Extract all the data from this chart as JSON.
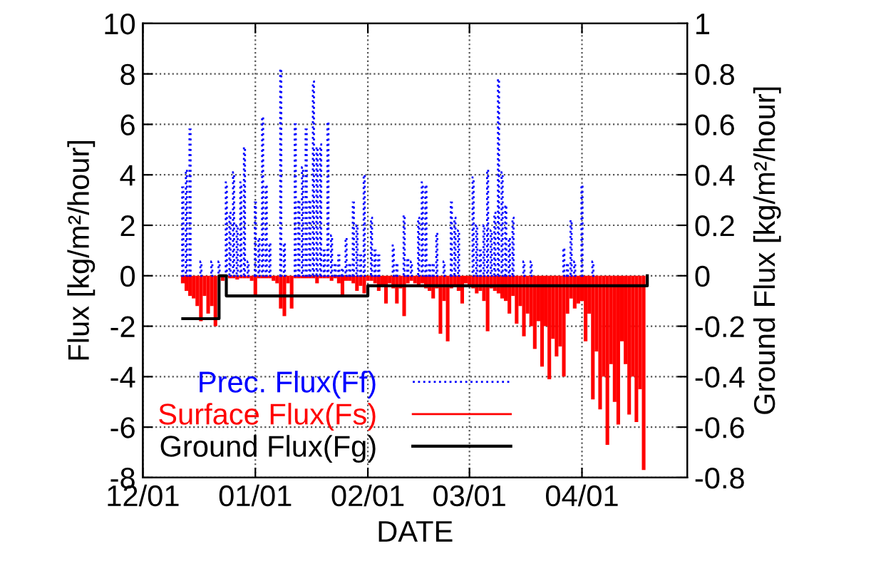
{
  "chart_data": {
    "type": "bar",
    "xlabel": "DATE",
    "ylabel": "Flux [kg/m²/hour]",
    "y2label": "Ground Flux [kg/m²/hour]",
    "categories": [
      "12/01",
      null,
      null,
      null,
      null,
      null,
      null,
      null,
      null,
      null,
      null,
      null,
      null,
      null,
      null,
      null,
      null,
      null,
      null,
      null,
      null,
      null,
      null,
      null,
      null,
      null,
      null,
      null,
      null,
      null,
      null,
      "01/01",
      null,
      null,
      null,
      null,
      null,
      null,
      null,
      null,
      null,
      null,
      null,
      null,
      null,
      null,
      null,
      null,
      null,
      null,
      null,
      null,
      null,
      null,
      null,
      null,
      null,
      null,
      null,
      null,
      null,
      null,
      "02/01",
      null,
      null,
      null,
      null,
      null,
      null,
      null,
      null,
      null,
      null,
      null,
      null,
      null,
      null,
      null,
      null,
      null,
      null,
      null,
      null,
      null,
      null,
      null,
      null,
      null,
      null,
      null,
      "03/01",
      null,
      null,
      null,
      null,
      null,
      null,
      null,
      null,
      null,
      null,
      null,
      null,
      null,
      null,
      null,
      null,
      null,
      null,
      null,
      null,
      null,
      null,
      null,
      null,
      null,
      null,
      null,
      null,
      null,
      null,
      "04/01",
      null,
      null,
      null,
      null,
      null,
      null,
      null,
      null,
      null,
      null,
      null,
      null,
      null,
      null,
      null,
      null,
      null,
      null,
      null,
      null,
      null,
      null,
      null,
      null,
      null,
      null,
      null,
      null,
      null
    ],
    "ylim": [
      -8,
      10
    ],
    "yticks": [
      -8,
      -6,
      -4,
      -2,
      0,
      2,
      4,
      6,
      8,
      10
    ],
    "y2lim": [
      -0.8,
      1
    ],
    "y2ticks": [
      -0.8,
      -0.6,
      -0.4,
      -0.2,
      0,
      0.2,
      0.4,
      0.6,
      0.8,
      1
    ],
    "grid": true,
    "legend": "bottom left",
    "series": [
      {
        "name": "Prec. Flux(Ff)",
        "color": "#0000ff",
        "line_style": "dotted",
        "values": [
          null,
          null,
          null,
          null,
          null,
          null,
          null,
          null,
          null,
          null,
          null,
          3.5,
          4.2,
          5.8,
          null,
          null,
          0.56,
          null,
          null,
          0.56,
          null,
          0.56,
          null,
          3.7,
          2.5,
          4.1,
          2.0,
          3.7,
          5.1,
          0.56,
          null,
          2.9,
          1.5,
          6.3,
          3.6,
          1.3,
          null,
          null,
          8.2,
          1.3,
          null,
          null,
          6.0,
          3.0,
          4.3,
          5.8,
          3.0,
          7.7,
          5.1,
          5.2,
          1.0,
          6.1,
          1.6,
          0.5,
          0.8,
          0.3,
          1.5,
          0.5,
          2.9,
          2.0,
          0.8,
          4.0,
          null,
          2.3,
          1.0,
          0.8,
          null,
          null,
          null,
          1.2,
          0.5,
          null,
          2.4,
          0.7,
          0.56,
          null,
          2.3,
          3.7,
          3.6,
          0.5,
          0.5,
          1.7,
          null,
          0.56,
          null,
          2.9,
          2.3,
          1.8,
          null,
          null,
          null,
          3.9,
          2.0,
          1.0,
          2.0,
          4.2,
          1.8,
          2.5,
          7.8,
          4.1,
          2.8,
          1.5,
          2.3,
          null,
          null,
          0.56,
          null,
          0.56,
          null,
          null,
          null,
          null,
          null,
          null,
          null,
          null,
          1.1,
          0.5,
          2.2,
          0.56,
          null,
          3.6,
          null,
          null,
          0.56,
          null,
          null,
          null,
          null,
          null,
          null,
          null,
          null,
          null,
          null,
          null,
          null,
          null,
          null,
          null,
          null,
          null,
          null,
          null,
          null,
          null,
          null,
          null,
          null,
          null,
          null
        ]
      },
      {
        "name": "Surface Flux(Fs)",
        "color": "#ff0000",
        "values": [
          null,
          null,
          null,
          null,
          null,
          null,
          null,
          null,
          null,
          null,
          null,
          -0.3,
          -0.6,
          -0.8,
          -0.9,
          -1.2,
          -1.8,
          -0.8,
          -1.5,
          -1.2,
          -2.0,
          null,
          -0.2,
          null,
          -0.1,
          -0.1,
          -0.15,
          -0.1,
          -0.1,
          -0.1,
          -0.2,
          -0.75,
          -0.1,
          -0.1,
          -0.1,
          -0.1,
          -0.2,
          -0.3,
          -1.3,
          -1.6,
          -0.3,
          -1.3,
          -0.1,
          -0.1,
          -0.1,
          -0.1,
          -0.1,
          -0.1,
          -0.3,
          -0.1,
          -0.1,
          -0.1,
          -0.2,
          -0.1,
          -0.3,
          -0.85,
          -0.2,
          -0.2,
          -0.3,
          -0.6,
          -0.4,
          -0.7,
          -0.2,
          -0.2,
          -0.3,
          -0.6,
          -0.4,
          -1.1,
          -0.3,
          -0.5,
          -1.1,
          -0.5,
          -1.6,
          -0.3,
          -0.2,
          -0.3,
          -0.4,
          -0.3,
          -0.5,
          -0.6,
          -0.9,
          -0.5,
          -2.3,
          -1.0,
          -2.6,
          -0.5,
          -0.4,
          -0.6,
          -1.1,
          -0.3,
          -0.4,
          -0.5,
          -0.7,
          -0.6,
          -1.0,
          -2.2,
          -0.5,
          -0.6,
          -0.7,
          -0.9,
          -1.0,
          -1.5,
          -0.8,
          -1.9,
          -1.2,
          -2.4,
          -1.5,
          -2.0,
          -2.9,
          -1.8,
          -3.6,
          -2.0,
          -4.1,
          -2.5,
          -3.2,
          -2.8,
          -4.0,
          -1.5,
          -0.9,
          -1.3,
          -1.1,
          -1.0,
          -2.6,
          -1.5,
          -4.9,
          -3.0,
          -5.3,
          -4.0,
          -6.7,
          -3.5,
          -5.0,
          -5.9,
          -2.6,
          -3.5,
          -5.5,
          -4.0,
          -5.8,
          -4.5,
          -7.7,
          null,
          null,
          null,
          null,
          null,
          null,
          null,
          null,
          null,
          null,
          null,
          null
        ]
      },
      {
        "name": "Ground Flux(Fg)",
        "type": "step",
        "axis": "y2",
        "color": "#000000",
        "values": [
          null,
          null,
          null,
          null,
          null,
          null,
          null,
          null,
          null,
          null,
          null,
          -0.17,
          -0.17,
          -0.17,
          -0.17,
          -0.17,
          -0.17,
          -0.17,
          -0.17,
          -0.17,
          -0.17,
          0,
          0,
          -0.08,
          -0.08,
          -0.08,
          -0.08,
          -0.08,
          -0.08,
          -0.08,
          -0.08,
          -0.08,
          -0.08,
          -0.08,
          -0.08,
          -0.08,
          -0.08,
          -0.08,
          -0.08,
          -0.08,
          -0.08,
          -0.08,
          -0.08,
          -0.08,
          -0.08,
          -0.08,
          -0.08,
          -0.08,
          -0.08,
          -0.08,
          -0.08,
          -0.08,
          -0.08,
          -0.08,
          -0.08,
          -0.08,
          -0.08,
          -0.08,
          -0.08,
          -0.08,
          -0.08,
          -0.08,
          -0.04,
          -0.04,
          -0.04,
          -0.04,
          -0.04,
          -0.04,
          -0.04,
          -0.04,
          -0.04,
          -0.04,
          -0.04,
          -0.04,
          -0.04,
          -0.04,
          -0.04,
          -0.04,
          -0.04,
          -0.04,
          -0.04,
          -0.04,
          -0.04,
          -0.04,
          -0.04,
          -0.04,
          -0.04,
          -0.04,
          -0.04,
          -0.04,
          -0.04,
          -0.04,
          -0.04,
          -0.04,
          -0.04,
          -0.04,
          -0.04,
          -0.04,
          -0.04,
          -0.04,
          -0.04,
          -0.04,
          -0.04,
          -0.04,
          -0.04,
          -0.04,
          -0.04,
          -0.04,
          -0.04,
          -0.04,
          -0.04,
          -0.04,
          -0.04,
          -0.04,
          -0.04,
          -0.04,
          -0.04,
          -0.04,
          -0.04,
          -0.04,
          -0.04,
          -0.04,
          -0.04,
          -0.04,
          -0.04,
          -0.04,
          -0.04,
          -0.04,
          -0.04,
          -0.04,
          -0.04,
          -0.04,
          -0.04,
          -0.04,
          -0.04,
          -0.04,
          -0.04,
          -0.04,
          -0.04,
          0,
          null,
          null,
          null,
          null,
          null,
          null,
          null,
          null,
          null,
          null,
          null
        ]
      }
    ]
  }
}
